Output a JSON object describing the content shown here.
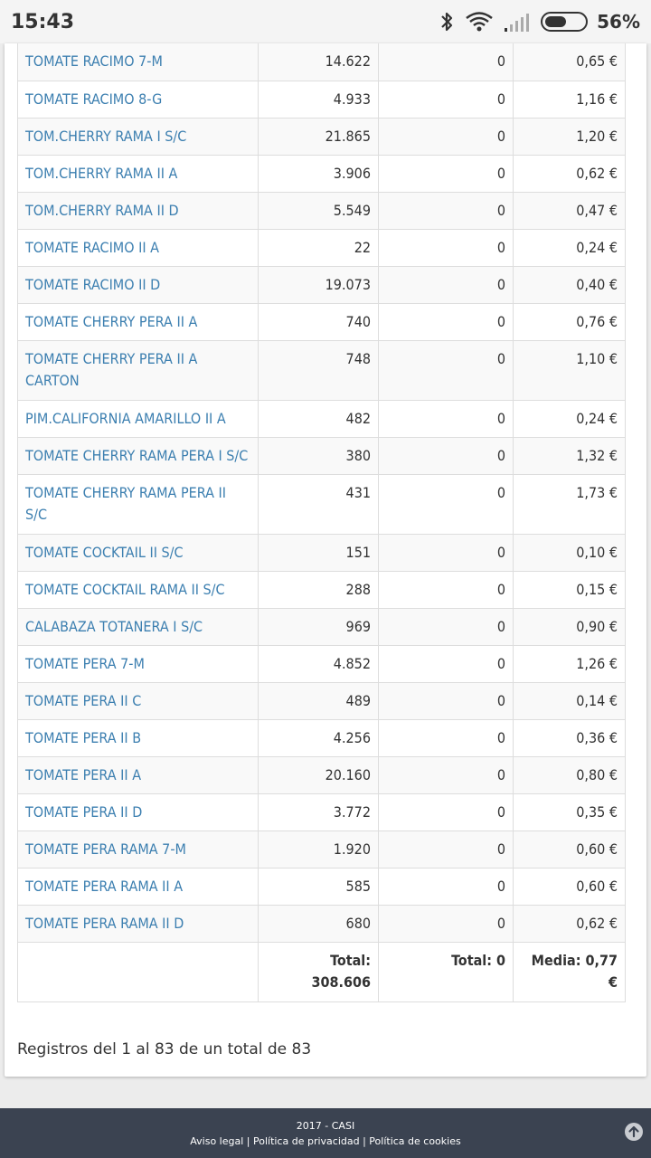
{
  "status": {
    "time": "15:43",
    "battery": "56%"
  },
  "table": {
    "rows": [
      {
        "name": "TOMATE RACIMO 7-M",
        "qty": "14.622",
        "zero": "0",
        "price": "0,65 €"
      },
      {
        "name": "TOMATE RACIMO 8-G",
        "qty": "4.933",
        "zero": "0",
        "price": "1,16 €"
      },
      {
        "name": "TOM.CHERRY RAMA I S/C",
        "qty": "21.865",
        "zero": "0",
        "price": "1,20 €"
      },
      {
        "name": "TOM.CHERRY RAMA II A",
        "qty": "3.906",
        "zero": "0",
        "price": "0,62 €"
      },
      {
        "name": "TOM.CHERRY RAMA II D",
        "qty": "5.549",
        "zero": "0",
        "price": "0,47 €"
      },
      {
        "name": "TOMATE RACIMO II A",
        "qty": "22",
        "zero": "0",
        "price": "0,24 €"
      },
      {
        "name": "TOMATE RACIMO II D",
        "qty": "19.073",
        "zero": "0",
        "price": "0,40 €"
      },
      {
        "name": "TOMATE CHERRY PERA II A",
        "qty": "740",
        "zero": "0",
        "price": "0,76 €"
      },
      {
        "name": "TOMATE CHERRY PERA II A CARTON",
        "qty": "748",
        "zero": "0",
        "price": "1,10 €"
      },
      {
        "name": "PIM.CALIFORNIA AMARILLO II A",
        "qty": "482",
        "zero": "0",
        "price": "0,24 €"
      },
      {
        "name": "TOMATE CHERRY RAMA PERA I S/C",
        "qty": "380",
        "zero": "0",
        "price": "1,32 €"
      },
      {
        "name": "TOMATE CHERRY RAMA PERA II S/C",
        "qty": "431",
        "zero": "0",
        "price": "1,73 €"
      },
      {
        "name": "TOMATE COCKTAIL II S/C",
        "qty": "151",
        "zero": "0",
        "price": "0,10 €"
      },
      {
        "name": "TOMATE COCKTAIL RAMA II S/C",
        "qty": "288",
        "zero": "0",
        "price": "0,15 €"
      },
      {
        "name": "CALABAZA TOTANERA I S/C",
        "qty": "969",
        "zero": "0",
        "price": "0,90 €"
      },
      {
        "name": "TOMATE PERA 7-M",
        "qty": "4.852",
        "zero": "0",
        "price": "1,26 €"
      },
      {
        "name": "TOMATE PERA II C",
        "qty": "489",
        "zero": "0",
        "price": "0,14 €"
      },
      {
        "name": "TOMATE PERA II B",
        "qty": "4.256",
        "zero": "0",
        "price": "0,36 €"
      },
      {
        "name": "TOMATE PERA II A",
        "qty": "20.160",
        "zero": "0",
        "price": "0,80 €"
      },
      {
        "name": "TOMATE PERA II D",
        "qty": "3.772",
        "zero": "0",
        "price": "0,35 €"
      },
      {
        "name": "TOMATE PERA RAMA 7-M",
        "qty": "1.920",
        "zero": "0",
        "price": "0,60 €"
      },
      {
        "name": "TOMATE PERA RAMA II A",
        "qty": "585",
        "zero": "0",
        "price": "0,60 €"
      },
      {
        "name": "TOMATE PERA RAMA II D",
        "qty": "680",
        "zero": "0",
        "price": "0,62 €"
      }
    ],
    "totals": {
      "qty_label": "Total:",
      "qty_value": "308.606",
      "zero": "Total: 0",
      "price_label": "Media: 0,77",
      "price_unit": "€"
    }
  },
  "registros": "Registros del 1 al 83 de un total de 83",
  "footer": {
    "copyright": "2017 - CASI",
    "links": [
      "Aviso legal",
      "Política de privacidad",
      "Política de cookies"
    ],
    "separator": " | "
  },
  "colors": {
    "link": "#3c7fb0",
    "footer_bg": "#3b4351",
    "row_alt": "#f9f9f9"
  }
}
